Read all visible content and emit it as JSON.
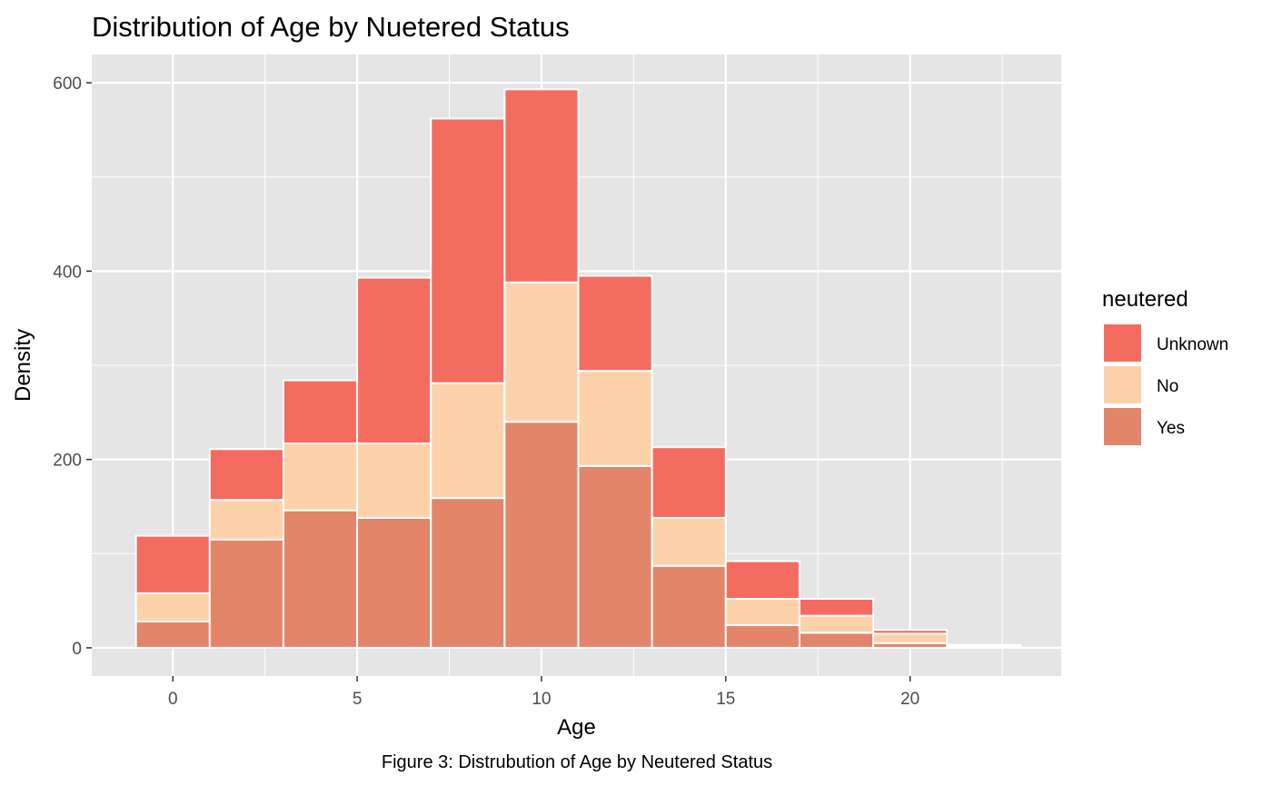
{
  "chart_data": {
    "type": "bar",
    "stacked": true,
    "title": "Distribution of Age by Nuetered Status",
    "caption": "Figure 3: Distrubution of Age by Neutered Status",
    "xlabel": "Age",
    "ylabel": "Density",
    "xlim": [
      -2.2,
      24.1
    ],
    "ylim": [
      -30,
      630
    ],
    "x_ticks": [
      0,
      5,
      10,
      15,
      20
    ],
    "y_ticks": [
      0,
      200,
      400,
      600
    ],
    "grid": true,
    "bin_width": 2,
    "bins": [
      {
        "x0": -1,
        "x1": 1
      },
      {
        "x0": 1,
        "x1": 3
      },
      {
        "x0": 3,
        "x1": 5
      },
      {
        "x0": 5,
        "x1": 7
      },
      {
        "x0": 7,
        "x1": 9
      },
      {
        "x0": 9,
        "x1": 11
      },
      {
        "x0": 11,
        "x1": 13
      },
      {
        "x0": 13,
        "x1": 15
      },
      {
        "x0": 15,
        "x1": 17
      },
      {
        "x0": 17,
        "x1": 19
      },
      {
        "x0": 19,
        "x1": 21
      },
      {
        "x0": 21,
        "x1": 23
      }
    ],
    "legend": {
      "title": "neutered",
      "position": "right"
    },
    "series": [
      {
        "name": "Yes",
        "color": "#E2856A",
        "values": [
          28,
          115,
          146,
          138,
          159,
          240,
          193,
          87,
          24,
          16,
          5,
          1
        ]
      },
      {
        "name": "No",
        "color": "#FDD2AB",
        "values": [
          30,
          42,
          71,
          79,
          122,
          148,
          101,
          51,
          28,
          18,
          10,
          1
        ]
      },
      {
        "name": "Unknown",
        "color": "#F46C60",
        "values": [
          61,
          54,
          67,
          176,
          281,
          205,
          101,
          75,
          40,
          18,
          4,
          1
        ]
      }
    ],
    "legend_order": [
      "Unknown",
      "No",
      "Yes"
    ],
    "colors": {
      "panel": "#E5E5E5",
      "grid": "#FFFFFF",
      "bar_outline": "#FFFFFF"
    }
  }
}
